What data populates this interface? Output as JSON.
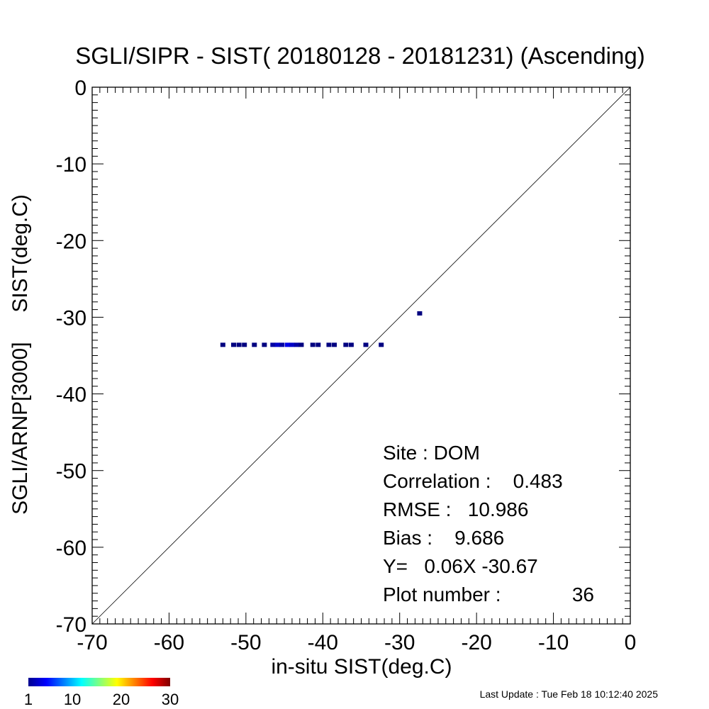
{
  "chart_data": {
    "type": "scatter",
    "title": "SGLI/SIPR - SIST( 20180128 - 20181231) (Ascending)",
    "xlabel": "in-situ SIST(deg.C)",
    "ylabel": "SGLI/ARNP[3000]     SIST(deg.C)",
    "xlim": [
      -70,
      0
    ],
    "ylim": [
      -70,
      0
    ],
    "x_ticks": [
      "-70",
      "-60",
      "-50",
      "-40",
      "-30",
      "-20",
      "-10",
      "0"
    ],
    "y_ticks": [
      "0",
      "-10",
      "-20",
      "-30",
      "-40",
      "-50",
      "-60",
      "-70"
    ],
    "reference_line": "1:1",
    "grid": false,
    "points": [
      {
        "x": -53.0,
        "y": -33.6,
        "count": 1
      },
      {
        "x": -51.6,
        "y": -33.6,
        "count": 1
      },
      {
        "x": -50.9,
        "y": -33.6,
        "count": 1
      },
      {
        "x": -50.2,
        "y": -33.6,
        "count": 1
      },
      {
        "x": -48.9,
        "y": -33.6,
        "count": 1
      },
      {
        "x": -47.6,
        "y": -33.6,
        "count": 1
      },
      {
        "x": -46.5,
        "y": -33.6,
        "count": 2
      },
      {
        "x": -45.9,
        "y": -33.6,
        "count": 3
      },
      {
        "x": -45.3,
        "y": -33.6,
        "count": 2
      },
      {
        "x": -44.6,
        "y": -33.6,
        "count": 4
      },
      {
        "x": -44.0,
        "y": -33.6,
        "count": 3
      },
      {
        "x": -43.4,
        "y": -33.6,
        "count": 2
      },
      {
        "x": -42.8,
        "y": -33.6,
        "count": 1
      },
      {
        "x": -41.3,
        "y": -33.6,
        "count": 1
      },
      {
        "x": -40.6,
        "y": -33.6,
        "count": 1
      },
      {
        "x": -39.2,
        "y": -33.6,
        "count": 1
      },
      {
        "x": -38.5,
        "y": -33.6,
        "count": 1
      },
      {
        "x": -37.0,
        "y": -33.6,
        "count": 1
      },
      {
        "x": -36.3,
        "y": -33.6,
        "count": 1
      },
      {
        "x": -34.4,
        "y": -33.6,
        "count": 1
      },
      {
        "x": -32.4,
        "y": -33.6,
        "count": 1
      },
      {
        "x": -27.4,
        "y": -29.5,
        "count": 1
      }
    ],
    "stats": {
      "site": "Site : DOM",
      "correlation": "Correlation :    0.483",
      "rmse": "RMSE :   10.986",
      "bias": "Bias :    9.686",
      "fit": "Y=   0.06X -30.67",
      "plot_number": "Plot number :",
      "plot_number_value": "36"
    },
    "colorbar": {
      "range": [
        1,
        30
      ],
      "ticks": [
        "1",
        "10",
        "20",
        "30"
      ],
      "colormap": "jet"
    },
    "last_update": "Last Update : Tue Feb 18 10:12:40 2025"
  }
}
